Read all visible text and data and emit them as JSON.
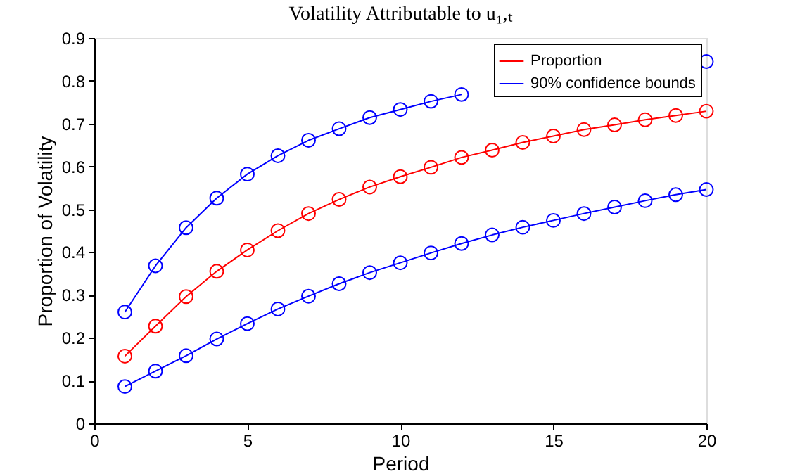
{
  "chart_data": {
    "type": "line",
    "title": "Volatility Attributable to u₁,ₜ",
    "xlabel": "Period",
    "ylabel": "Proportion of Volatility",
    "x": [
      1,
      2,
      3,
      4,
      5,
      6,
      7,
      8,
      9,
      10,
      11,
      12,
      13,
      14,
      15,
      16,
      17,
      18,
      19,
      20
    ],
    "series": [
      {
        "name": "Proportion",
        "color": "#ff0000",
        "values": [
          0.157,
          0.227,
          0.296,
          0.355,
          0.405,
          0.45,
          0.49,
          0.523,
          0.552,
          0.576,
          0.598,
          0.621,
          0.638,
          0.656,
          0.671,
          0.686,
          0.697,
          0.709,
          0.719,
          0.729
        ]
      },
      {
        "name": "90% confidence bounds",
        "color": "#0000ff",
        "values": [
          0.26,
          0.368,
          0.457,
          0.526,
          0.582,
          0.625,
          0.661,
          0.688,
          0.714,
          0.733,
          0.752,
          0.768,
          null,
          null,
          null,
          null,
          null,
          null,
          null,
          0.845
        ]
      },
      {
        "color": "#0000ff",
        "values": [
          0.086,
          0.122,
          0.158,
          0.197,
          0.233,
          0.267,
          0.297,
          0.326,
          0.352,
          0.375,
          0.398,
          0.42,
          0.44,
          0.458,
          0.474,
          0.49,
          0.505,
          0.52,
          0.534,
          0.546
        ]
      }
    ],
    "xlim": [
      0,
      20
    ],
    "xticks": [
      0,
      5,
      10,
      15,
      20
    ],
    "ylim": [
      0,
      0.9
    ],
    "yticks": [
      0,
      0.1,
      0.2,
      0.3,
      0.4,
      0.5,
      0.6,
      0.7,
      0.8,
      0.9
    ],
    "grid": false,
    "legend": "top right",
    "marker": "circle",
    "line_style": "solid"
  }
}
